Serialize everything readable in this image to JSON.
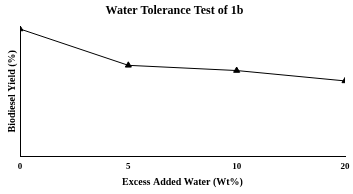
{
  "chart_data": {
    "type": "line",
    "title": "Water Tolerance Test of 1b",
    "x_label": "Excess Added Water (Wt%)",
    "y_label": "Biodiesel Yield (%)",
    "categories": [
      "0",
      "5",
      "10",
      "20"
    ],
    "values": [
      98,
      70,
      66,
      58
    ],
    "color": "#000000",
    "marker": "triangle",
    "line_style": "solid",
    "ylim": [
      0,
      100
    ],
    "grid": false,
    "tick_labels": "x"
  }
}
